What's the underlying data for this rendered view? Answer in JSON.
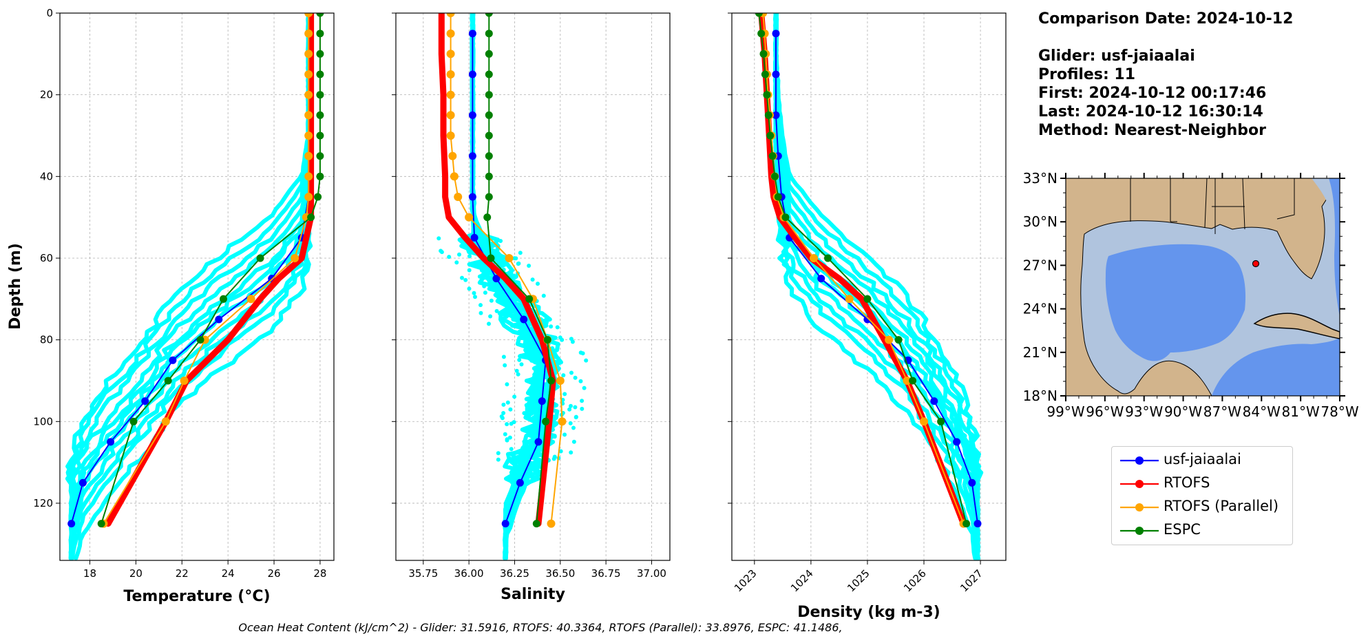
{
  "info": {
    "comparison_date": "Comparison Date: 2024-10-12",
    "glider": "Glider: usf-jaiaalai",
    "profiles": "Profiles: 11",
    "first": "First: 2024-10-12 00:17:46",
    "last": "Last: 2024-10-12 16:30:14",
    "method": "Method: Nearest-Neighbor"
  },
  "footer": "Ocean Heat Content (kJ/cm^2) - Glider: 31.5916,  RTOFS: 40.3364,  RTOFS (Parallel): 33.8976,  ESPC: 41.1486,",
  "legend": [
    {
      "name": "usf-jaiaalai",
      "color": "#0000ff"
    },
    {
      "name": "RTOFS",
      "color": "#ff0000"
    },
    {
      "name": "RTOFS (Parallel)",
      "color": "#ffa500"
    },
    {
      "name": "ESPC",
      "color": "#008000"
    }
  ],
  "colors": {
    "glider_raw": "#00ffff",
    "glider": "#0000ff",
    "rtofs": "#ff0000",
    "rtofs_parallel": "#ffa500",
    "espc": "#008000",
    "land": "#d2b48c",
    "shelf": "#b0c4de",
    "deep": "#6495ed"
  },
  "chart_data": [
    {
      "type": "line",
      "xlabel": "Temperature (°C)",
      "ylabel": "Depth (m)",
      "xlim": [
        16.7,
        28.6
      ],
      "ylim": [
        134,
        0
      ],
      "xticks": [
        "18",
        "20",
        "22",
        "24",
        "26",
        "28"
      ],
      "yticks": [
        "0",
        "20",
        "40",
        "60",
        "80",
        "100",
        "120"
      ],
      "grid": true,
      "series": [
        {
          "name": "usf-jaiaalai",
          "depth": [
            5,
            15,
            25,
            35,
            45,
            55,
            65,
            75,
            85,
            95,
            105,
            115,
            125
          ],
          "values": [
            27.5,
            27.5,
            27.5,
            27.5,
            27.5,
            27.2,
            25.9,
            23.6,
            21.6,
            20.4,
            18.9,
            17.7,
            17.2
          ]
        },
        {
          "name": "RTOFS",
          "depth": [
            0,
            10,
            20,
            30,
            40,
            50,
            55,
            60,
            65,
            70,
            80,
            90,
            100,
            125
          ],
          "values": [
            27.6,
            27.6,
            27.6,
            27.6,
            27.6,
            27.6,
            27.4,
            27.2,
            26.2,
            25.4,
            24.0,
            22.2,
            21.3,
            18.8
          ]
        },
        {
          "name": "RTOFS (Parallel)",
          "depth": [
            0,
            5,
            10,
            15,
            20,
            25,
            30,
            35,
            40,
            45,
            50,
            60,
            70,
            80,
            90,
            100,
            125
          ],
          "values": [
            27.5,
            27.5,
            27.5,
            27.5,
            27.5,
            27.5,
            27.5,
            27.5,
            27.5,
            27.5,
            27.4,
            26.9,
            25.0,
            23.0,
            22.1,
            21.3,
            18.6
          ]
        },
        {
          "name": "ESPC",
          "depth": [
            0,
            5,
            10,
            15,
            20,
            25,
            30,
            35,
            40,
            45,
            50,
            60,
            70,
            80,
            90,
            100,
            125
          ],
          "values": [
            28.0,
            28.0,
            28.0,
            28.0,
            28.0,
            28.0,
            28.0,
            28.0,
            28.0,
            27.9,
            27.6,
            25.4,
            23.8,
            22.8,
            21.4,
            19.9,
            18.5
          ]
        }
      ]
    },
    {
      "type": "line",
      "xlabel": "Salinity",
      "ylabel": "",
      "xlim": [
        35.6,
        37.1
      ],
      "ylim": [
        134,
        0
      ],
      "xticks": [
        "35.75",
        "36.00",
        "36.25",
        "36.50",
        "36.75",
        "37.00"
      ],
      "grid": true,
      "series": [
        {
          "name": "usf-jaiaalai",
          "depth": [
            5,
            15,
            25,
            35,
            45,
            55,
            65,
            75,
            85,
            95,
            105,
            115,
            125
          ],
          "values": [
            36.02,
            36.02,
            36.02,
            36.02,
            36.02,
            36.03,
            36.15,
            36.3,
            36.42,
            36.4,
            36.38,
            36.28,
            36.2
          ]
        },
        {
          "name": "RTOFS",
          "depth": [
            0,
            10,
            20,
            30,
            40,
            45,
            50,
            55,
            60,
            65,
            70,
            80,
            90,
            100,
            125
          ],
          "values": [
            35.85,
            35.85,
            35.86,
            35.86,
            35.87,
            35.87,
            35.89,
            35.98,
            36.08,
            36.2,
            36.3,
            36.4,
            36.46,
            36.44,
            36.38
          ]
        },
        {
          "name": "RTOFS (Parallel)",
          "depth": [
            0,
            5,
            10,
            15,
            20,
            25,
            30,
            35,
            40,
            45,
            50,
            60,
            70,
            80,
            90,
            100,
            125
          ],
          "values": [
            35.9,
            35.9,
            35.9,
            35.9,
            35.9,
            35.9,
            35.9,
            35.91,
            35.92,
            35.94,
            36.0,
            36.22,
            36.35,
            36.43,
            36.5,
            36.51,
            36.45
          ]
        },
        {
          "name": "ESPC",
          "depth": [
            0,
            5,
            10,
            15,
            20,
            25,
            30,
            35,
            40,
            45,
            50,
            60,
            70,
            80,
            90,
            100,
            125
          ],
          "values": [
            36.11,
            36.11,
            36.11,
            36.11,
            36.11,
            36.11,
            36.11,
            36.11,
            36.11,
            36.11,
            36.1,
            36.12,
            36.33,
            36.43,
            36.45,
            36.42,
            36.37
          ]
        }
      ]
    },
    {
      "type": "line",
      "xlabel": "Density (kg m-3)",
      "ylabel": "",
      "xlim": [
        1022.6,
        1027.45
      ],
      "ylim": [
        134,
        0
      ],
      "xticks": [
        "1023",
        "1024",
        "1025",
        "1026",
        "1027"
      ],
      "grid": true,
      "series": [
        {
          "name": "usf-jaiaalai",
          "depth": [
            5,
            15,
            25,
            35,
            45,
            55,
            65,
            75,
            85,
            95,
            105,
            115,
            125
          ],
          "values": [
            1023.38,
            1023.38,
            1023.38,
            1023.42,
            1023.48,
            1023.62,
            1024.18,
            1025.0,
            1025.72,
            1026.18,
            1026.58,
            1026.85,
            1026.95
          ]
        },
        {
          "name": "RTOFS",
          "depth": [
            0,
            10,
            20,
            30,
            40,
            45,
            50,
            55,
            60,
            65,
            70,
            80,
            90,
            100,
            125
          ],
          "values": [
            1023.12,
            1023.18,
            1023.22,
            1023.26,
            1023.3,
            1023.34,
            1023.45,
            1023.72,
            1024.0,
            1024.5,
            1024.9,
            1025.3,
            1025.7,
            1026.0,
            1026.7
          ]
        },
        {
          "name": "RTOFS (Parallel)",
          "depth": [
            0,
            5,
            10,
            15,
            20,
            25,
            30,
            35,
            40,
            45,
            50,
            60,
            70,
            80,
            90,
            100,
            125
          ],
          "values": [
            1023.15,
            1023.18,
            1023.2,
            1023.22,
            1023.24,
            1023.27,
            1023.3,
            1023.33,
            1023.36,
            1023.4,
            1023.52,
            1024.05,
            1024.68,
            1025.38,
            1025.7,
            1026.0,
            1026.7
          ]
        },
        {
          "name": "ESPC",
          "depth": [
            0,
            5,
            10,
            15,
            20,
            25,
            30,
            35,
            40,
            45,
            50,
            60,
            70,
            80,
            90,
            100,
            125
          ],
          "values": [
            1023.08,
            1023.12,
            1023.16,
            1023.19,
            1023.22,
            1023.25,
            1023.28,
            1023.32,
            1023.36,
            1023.42,
            1023.55,
            1024.3,
            1025.0,
            1025.55,
            1025.8,
            1026.3,
            1026.75
          ]
        }
      ]
    },
    {
      "type": "map",
      "title": "",
      "lon_range": [
        -99,
        -78
      ],
      "lat_range": [
        18,
        33
      ],
      "xticks": [
        "99°W",
        "96°W",
        "93°W",
        "90°W",
        "87°W",
        "84°W",
        "81°W",
        "78°W"
      ],
      "yticks": [
        "18°N",
        "21°N",
        "24°N",
        "27°N",
        "30°N",
        "33°N"
      ],
      "glider_position": {
        "lon": -84.5,
        "lat": 27.5
      }
    }
  ]
}
